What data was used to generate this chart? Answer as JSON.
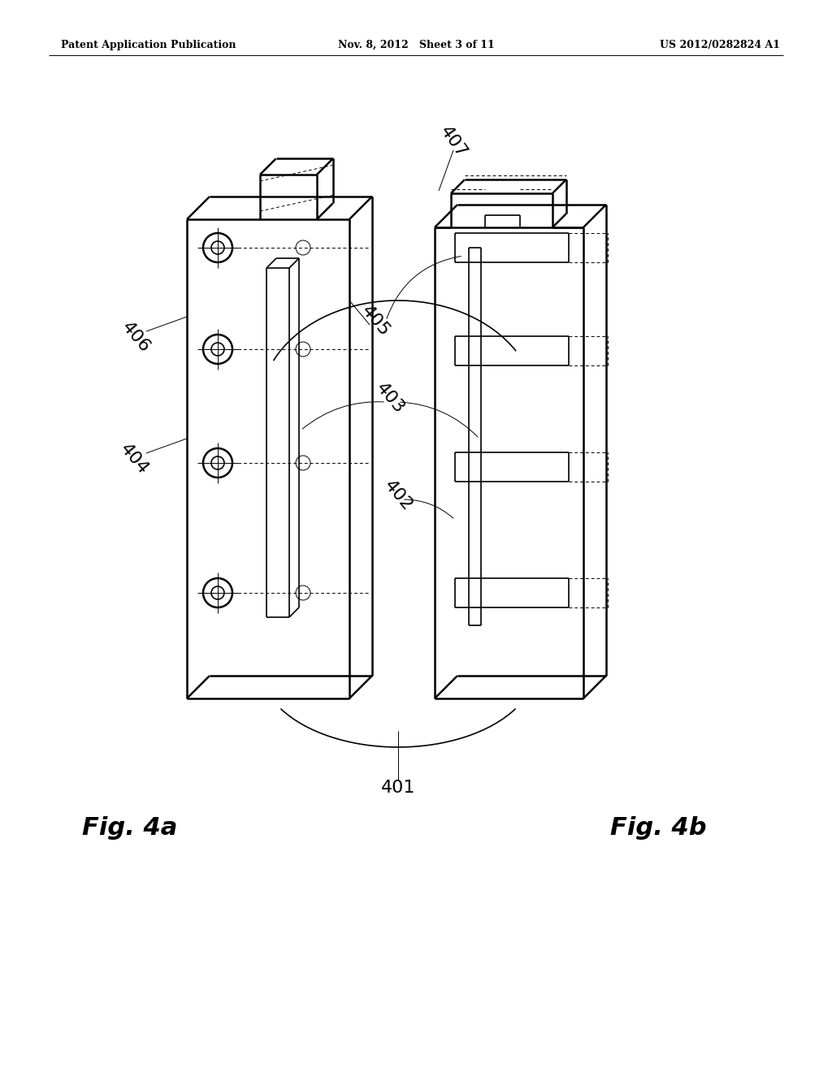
{
  "header_left": "Patent Application Publication",
  "header_mid": "Nov. 8, 2012   Sheet 3 of 11",
  "header_right": "US 2012/0282824 A1",
  "fig_label_left": "Fig. 4a",
  "fig_label_right": "Fig. 4b",
  "line_color": "#000000",
  "bg_color": "#ffffff",
  "lw_main": 1.8,
  "lw_med": 1.2,
  "lw_thin": 0.7
}
